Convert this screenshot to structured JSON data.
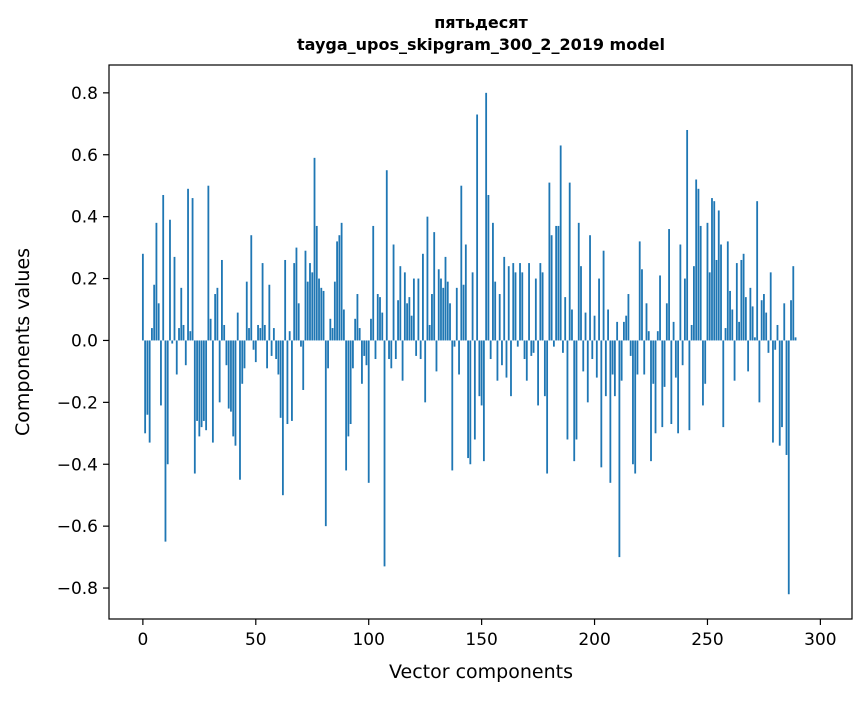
{
  "chart_data": {
    "type": "bar",
    "title_lines": [
      "пятьдесят",
      "tayga_upos_skipgram_300_2_2019 model"
    ],
    "xlabel": "Vector components",
    "ylabel": "Components values",
    "xlim": [
      -15,
      314
    ],
    "ylim": [
      -0.9,
      0.89
    ],
    "xticks": [
      0,
      50,
      100,
      150,
      200,
      250,
      300
    ],
    "xtick_labels": [
      "0",
      "50",
      "100",
      "150",
      "200",
      "250",
      "300"
    ],
    "yticks": [
      -0.8,
      -0.6,
      -0.4,
      -0.2,
      0.0,
      0.2,
      0.4,
      0.6,
      0.8
    ],
    "ytick_labels": [
      "−0.8",
      "−0.6",
      "−0.4",
      "−0.2",
      "0.0",
      "0.2",
      "0.4",
      "0.6",
      "0.8"
    ],
    "bar_color": "#1f77b4",
    "grid": false,
    "values": [
      0.28,
      -0.3,
      -0.24,
      -0.33,
      0.04,
      0.18,
      0.38,
      0.12,
      -0.21,
      0.47,
      -0.65,
      -0.4,
      0.39,
      -0.01,
      0.27,
      -0.11,
      0.04,
      0.17,
      0.05,
      -0.08,
      0.49,
      0.03,
      0.46,
      -0.43,
      -0.26,
      -0.31,
      -0.28,
      -0.26,
      -0.29,
      0.5,
      0.07,
      -0.33,
      0.15,
      0.17,
      -0.2,
      0.26,
      0.05,
      -0.08,
      -0.22,
      -0.23,
      -0.31,
      -0.34,
      0.09,
      -0.45,
      -0.14,
      -0.09,
      0.19,
      0.04,
      0.34,
      -0.03,
      -0.07,
      0.05,
      0.04,
      0.25,
      0.05,
      -0.09,
      0.18,
      -0.05,
      0.04,
      -0.06,
      -0.11,
      -0.25,
      -0.5,
      0.26,
      -0.27,
      0.03,
      -0.26,
      0.25,
      0.3,
      0.12,
      -0.02,
      -0.16,
      0.29,
      0.19,
      0.25,
      0.22,
      0.59,
      0.37,
      0.2,
      0.17,
      0.16,
      -0.6,
      -0.09,
      0.07,
      0.04,
      0.19,
      0.32,
      0.34,
      0.38,
      0.1,
      -0.42,
      -0.31,
      -0.27,
      -0.09,
      0.07,
      0.15,
      0.04,
      -0.14,
      -0.05,
      -0.08,
      -0.46,
      0.07,
      0.37,
      -0.06,
      0.15,
      0.14,
      0.09,
      -0.73,
      0.55,
      -0.06,
      -0.09,
      0.31,
      -0.06,
      0.13,
      0.24,
      -0.13,
      0.22,
      0.12,
      0.14,
      0.08,
      0.2,
      -0.05,
      0.2,
      -0.06,
      0.28,
      -0.2,
      0.4,
      0.05,
      0.15,
      0.35,
      -0.1,
      0.23,
      0.2,
      0.17,
      0.27,
      0.19,
      0.12,
      -0.42,
      -0.02,
      0.17,
      -0.11,
      0.5,
      0.18,
      0.31,
      -0.38,
      -0.4,
      0.22,
      -0.32,
      0.73,
      -0.18,
      -0.21,
      -0.39,
      0.8,
      0.47,
      -0.06,
      0.38,
      0.19,
      -0.13,
      0.15,
      -0.08,
      0.27,
      -0.12,
      0.24,
      -0.18,
      0.25,
      0.22,
      -0.02,
      0.25,
      0.22,
      -0.06,
      -0.13,
      0.25,
      -0.05,
      -0.04,
      0.2,
      -0.21,
      0.25,
      0.22,
      -0.18,
      -0.43,
      0.51,
      0.34,
      -0.02,
      0.37,
      0.37,
      0.63,
      -0.04,
      0.14,
      -0.32,
      0.51,
      0.1,
      -0.39,
      -0.32,
      0.38,
      0.24,
      -0.1,
      0.09,
      -0.2,
      0.34,
      -0.06,
      0.08,
      -0.12,
      0.2,
      -0.41,
      0.29,
      -0.18,
      0.1,
      -0.46,
      -0.11,
      -0.18,
      0.06,
      -0.7,
      -0.13,
      0.06,
      0.08,
      0.15,
      -0.05,
      -0.4,
      -0.43,
      -0.11,
      0.32,
      0.23,
      -0.11,
      0.12,
      0.03,
      -0.39,
      -0.14,
      -0.3,
      0.03,
      0.21,
      -0.28,
      -0.15,
      0.12,
      0.36,
      -0.27,
      0.06,
      -0.12,
      -0.3,
      0.31,
      -0.08,
      0.2,
      0.68,
      -0.29,
      0.05,
      0.24,
      0.52,
      0.49,
      0.37,
      -0.21,
      -0.14,
      0.38,
      0.22,
      0.46,
      0.45,
      0.26,
      0.42,
      0.31,
      -0.28,
      0.04,
      0.32,
      0.16,
      0.1,
      -0.13,
      0.25,
      0.06,
      0.26,
      0.28,
      0.14,
      -0.1,
      0.17,
      0.11,
      0.01,
      0.45,
      -0.2,
      0.13,
      0.15,
      0.09,
      -0.04,
      0.22,
      -0.33,
      -0.03,
      0.05,
      -0.34,
      -0.28,
      0.12,
      -0.37,
      -0.82,
      0.13,
      0.24,
      0.01
    ]
  }
}
